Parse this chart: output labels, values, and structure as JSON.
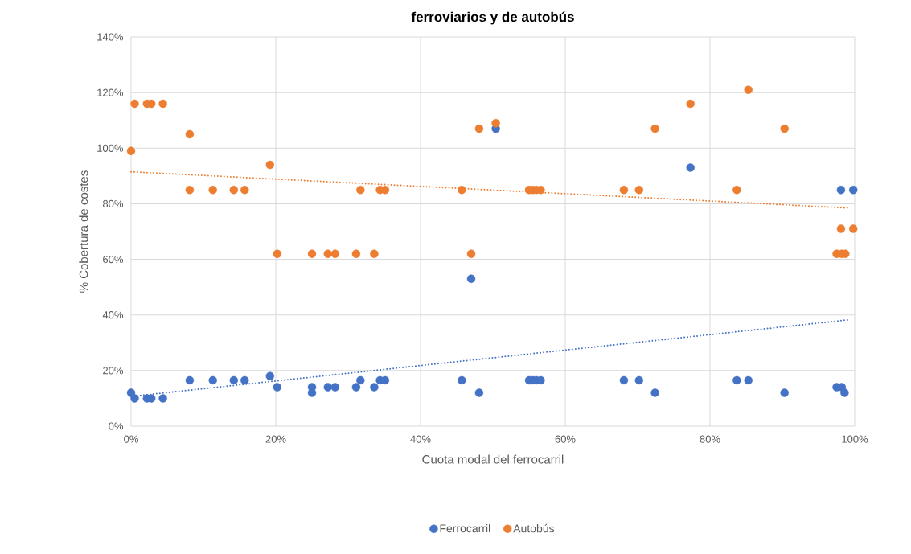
{
  "chart_data": {
    "type": "scatter",
    "title": "ferroviarios y de autobús",
    "xlabel": "Cuota modal del ferrocarril",
    "ylabel": "% Cobertura de costes",
    "xlim": [
      0,
      100
    ],
    "ylim": [
      0,
      140
    ],
    "xticks": [
      {
        "value": 0,
        "label": "0%"
      },
      {
        "value": 20,
        "label": "20%"
      },
      {
        "value": 40,
        "label": "40%"
      },
      {
        "value": 60,
        "label": "60%"
      },
      {
        "value": 80,
        "label": "80%"
      },
      {
        "value": 100,
        "label": "100%"
      }
    ],
    "yticks": [
      {
        "value": 0,
        "label": "0%"
      },
      {
        "value": 20,
        "label": "20%"
      },
      {
        "value": 40,
        "label": "40%"
      },
      {
        "value": 60,
        "label": "60%"
      },
      {
        "value": 80,
        "label": "80%"
      },
      {
        "value": 100,
        "label": "100%"
      },
      {
        "value": 120,
        "label": "120%"
      },
      {
        "value": 140,
        "label": "140%"
      }
    ],
    "grid": true,
    "legend": "bottom",
    "marker": "circle",
    "series": [
      {
        "name": "Ferrocarril",
        "color": "#4472c4",
        "x": [
          0,
          0.5,
          2.2,
          2.8,
          4.4,
          8.1,
          11.3,
          14.2,
          15.7,
          19.2,
          20.2,
          25,
          25,
          27.2,
          28.2,
          31.1,
          31.7,
          33.6,
          34.4,
          35.1,
          45.7,
          47,
          48.1,
          50.4,
          55,
          55.5,
          56,
          56.6,
          68.1,
          70.2,
          72.4,
          77.3,
          83.7,
          85.3,
          90.3,
          97.5,
          98.2,
          98.6,
          98.1,
          99.8
        ],
        "values": [
          12,
          10,
          10,
          10,
          10,
          16.5,
          16.5,
          16.5,
          16.5,
          18,
          14,
          14,
          12,
          14,
          14,
          14,
          16.5,
          14,
          16.5,
          16.5,
          16.5,
          53,
          12,
          107,
          16.5,
          16.5,
          16.5,
          16.5,
          16.5,
          16.5,
          12,
          93,
          16.5,
          16.5,
          12,
          14,
          14,
          12,
          85,
          85
        ]
      },
      {
        "name": "Autobús",
        "color": "#ed7d31",
        "x": [
          0,
          0.5,
          2.2,
          2.8,
          4.4,
          8.1,
          8.1,
          11.3,
          14.2,
          15.7,
          19.2,
          20.2,
          25,
          27.2,
          28.2,
          31.1,
          31.7,
          33.6,
          34.4,
          35.1,
          45.7,
          47,
          48.1,
          50.4,
          55,
          55.5,
          56,
          56.6,
          68.1,
          70.2,
          72.4,
          77.3,
          83.7,
          85.3,
          90.3,
          97.5,
          98.2,
          98.7,
          98.1,
          99.8
        ],
        "values": [
          99,
          116,
          116,
          116,
          116,
          105,
          85,
          85,
          85,
          85,
          94,
          62,
          62,
          62,
          62,
          62,
          85,
          62,
          85,
          85,
          85,
          62,
          107,
          109,
          85,
          85,
          85,
          85,
          85,
          85,
          107,
          116,
          85,
          121,
          107,
          62,
          62,
          62,
          71,
          71
        ]
      },
      {
        "type": "line",
        "color": "#4472c4",
        "line_style": "dotted",
        "marker": "none",
        "x": [
          0,
          99
        ],
        "values": [
          10.7,
          38.2
        ]
      },
      {
        "type": "line",
        "color": "#ed7d31",
        "line_style": "dotted",
        "marker": "none",
        "x": [
          0,
          99
        ],
        "values": [
          91.5,
          78.5
        ]
      }
    ]
  }
}
